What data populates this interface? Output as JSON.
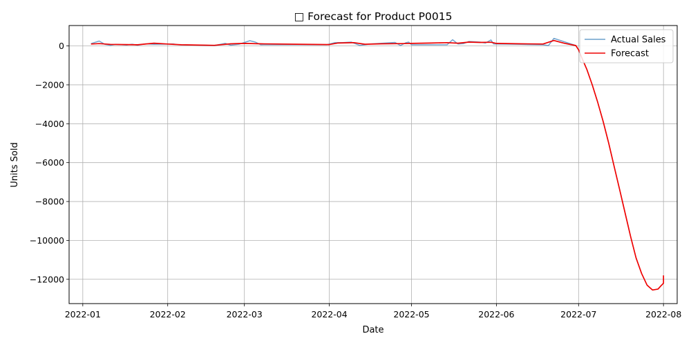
{
  "chart_data": {
    "type": "line",
    "title": "□ Forecast for Product P0015",
    "xlabel": "Date",
    "ylabel": "Units Sold",
    "x_range": [
      "2021-12-27",
      "2022-08-06"
    ],
    "ylim": [
      -13250,
      1050
    ],
    "x_ticks": [
      "2022-01-01",
      "2022-02-01",
      "2022-03-01",
      "2022-04-01",
      "2022-05-01",
      "2022-06-01",
      "2022-07-01",
      "2022-08-01"
    ],
    "x_tick_labels": [
      "2022-01",
      "2022-02",
      "2022-03",
      "2022-04",
      "2022-05",
      "2022-06",
      "2022-07",
      "2022-08"
    ],
    "y_ticks": [
      -12000,
      -10000,
      -8000,
      -6000,
      -4000,
      -2000,
      0
    ],
    "y_tick_labels": [
      "−12000",
      "−10000",
      "−8000",
      "−6000",
      "−4000",
      "−2000",
      "0"
    ],
    "grid": true,
    "legend_position": "top-right",
    "series": [
      {
        "name": "Actual Sales",
        "color": "#6a9fcb",
        "points": [
          [
            "2022-01-04",
            120
          ],
          [
            "2022-01-07",
            250
          ],
          [
            "2022-01-09",
            90
          ],
          [
            "2022-01-11",
            30
          ],
          [
            "2022-01-13",
            80
          ],
          [
            "2022-01-17",
            50
          ],
          [
            "2022-01-19",
            90
          ],
          [
            "2022-01-21",
            40
          ],
          [
            "2022-01-24",
            110
          ],
          [
            "2022-01-27",
            80
          ],
          [
            "2022-01-29",
            90
          ],
          [
            "2022-02-03",
            100
          ],
          [
            "2022-02-05",
            60
          ],
          [
            "2022-02-14",
            40
          ],
          [
            "2022-02-18",
            20
          ],
          [
            "2022-02-22",
            130
          ],
          [
            "2022-02-24",
            40
          ],
          [
            "2022-02-27",
            90
          ],
          [
            "2022-03-03",
            270
          ],
          [
            "2022-03-05",
            200
          ],
          [
            "2022-03-07",
            60
          ],
          [
            "2022-03-10",
            70
          ],
          [
            "2022-03-31",
            60
          ],
          [
            "2022-04-03",
            170
          ],
          [
            "2022-04-06",
            170
          ],
          [
            "2022-04-09",
            200
          ],
          [
            "2022-04-12",
            30
          ],
          [
            "2022-04-14",
            60
          ],
          [
            "2022-04-16",
            100
          ],
          [
            "2022-04-25",
            180
          ],
          [
            "2022-04-27",
            20
          ],
          [
            "2022-04-29",
            170
          ],
          [
            "2022-04-30",
            200
          ],
          [
            "2022-05-01",
            60
          ],
          [
            "2022-05-14",
            60
          ],
          [
            "2022-05-16",
            320
          ],
          [
            "2022-05-18",
            100
          ],
          [
            "2022-05-20",
            120
          ],
          [
            "2022-05-22",
            230
          ],
          [
            "2022-05-26",
            200
          ],
          [
            "2022-05-28",
            150
          ],
          [
            "2022-05-30",
            310
          ],
          [
            "2022-05-31",
            100
          ],
          [
            "2022-06-10",
            80
          ],
          [
            "2022-06-18",
            60
          ],
          [
            "2022-06-20",
            20
          ],
          [
            "2022-06-22",
            390
          ],
          [
            "2022-06-30",
            20
          ]
        ]
      },
      {
        "name": "Forecast",
        "color": "#ee0000",
        "points": [
          [
            "2022-01-04",
            100
          ],
          [
            "2022-01-07",
            120
          ],
          [
            "2022-01-11",
            80
          ],
          [
            "2022-01-17",
            70
          ],
          [
            "2022-01-21",
            60
          ],
          [
            "2022-01-27",
            140
          ],
          [
            "2022-02-01",
            100
          ],
          [
            "2022-02-06",
            60
          ],
          [
            "2022-02-18",
            30
          ],
          [
            "2022-02-24",
            110
          ],
          [
            "2022-03-01",
            130
          ],
          [
            "2022-03-07",
            110
          ],
          [
            "2022-03-20",
            90
          ],
          [
            "2022-04-01",
            70
          ],
          [
            "2022-04-04",
            150
          ],
          [
            "2022-04-10",
            170
          ],
          [
            "2022-04-14",
            90
          ],
          [
            "2022-04-20",
            110
          ],
          [
            "2022-04-28",
            120
          ],
          [
            "2022-05-01",
            130
          ],
          [
            "2022-05-08",
            150
          ],
          [
            "2022-05-14",
            170
          ],
          [
            "2022-05-18",
            140
          ],
          [
            "2022-05-22",
            200
          ],
          [
            "2022-05-26",
            180
          ],
          [
            "2022-05-30",
            190
          ],
          [
            "2022-06-01",
            130
          ],
          [
            "2022-06-10",
            110
          ],
          [
            "2022-06-18",
            100
          ],
          [
            "2022-06-22",
            280
          ],
          [
            "2022-06-26",
            130
          ],
          [
            "2022-06-30",
            20
          ],
          [
            "2022-07-01",
            -200
          ],
          [
            "2022-07-02",
            -550
          ],
          [
            "2022-07-04",
            -1200
          ],
          [
            "2022-07-06",
            -2000
          ],
          [
            "2022-07-08",
            -2900
          ],
          [
            "2022-07-10",
            -3900
          ],
          [
            "2022-07-12",
            -5000
          ],
          [
            "2022-07-14",
            -6200
          ],
          [
            "2022-07-16",
            -7400
          ],
          [
            "2022-07-18",
            -8600
          ],
          [
            "2022-07-20",
            -9800
          ],
          [
            "2022-07-22",
            -10900
          ],
          [
            "2022-07-24",
            -11700
          ],
          [
            "2022-07-26",
            -12300
          ],
          [
            "2022-07-28",
            -12550
          ],
          [
            "2022-07-30",
            -12500
          ],
          [
            "2022-08-01",
            -12200
          ],
          [
            "2022-07-31",
            -12350
          ],
          [
            "2022-08-01",
            -11800
          ]
        ]
      }
    ]
  }
}
